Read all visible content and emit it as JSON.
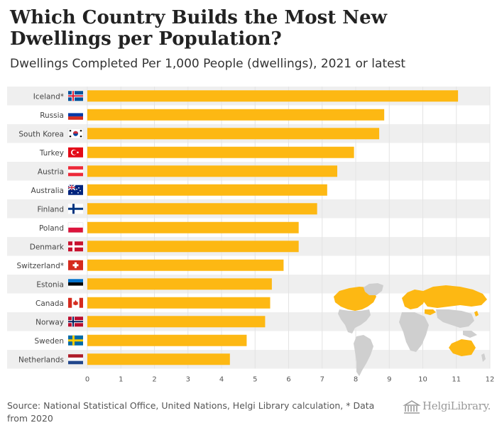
{
  "chart_data": {
    "type": "bar",
    "orientation": "horizontal",
    "title": "Which Country Builds the Most New Dwellings per Population?",
    "subtitle": "Dwellings Completed Per 1,000 People (dwellings), 2021 or latest",
    "categories": [
      "Iceland*",
      "Russia",
      "South Korea",
      "Turkey",
      "Austria",
      "Australia",
      "Finland",
      "Poland",
      "Denmark",
      "Switzerland*",
      "Estonia",
      "Canada",
      "Norway",
      "Sweden",
      "Netherlands"
    ],
    "flags": [
      "iceland",
      "russia",
      "south-korea",
      "turkey",
      "austria",
      "australia",
      "finland",
      "poland",
      "denmark",
      "switzerland",
      "estonia",
      "canada",
      "norway",
      "sweden",
      "netherlands"
    ],
    "values": [
      11.05,
      8.85,
      8.7,
      7.95,
      7.45,
      7.15,
      6.85,
      6.3,
      6.3,
      5.85,
      5.5,
      5.45,
      5.3,
      4.75,
      4.25
    ],
    "xlim": [
      0,
      12
    ],
    "xticks": [
      "0",
      "1",
      "2",
      "3",
      "4",
      "5",
      "6",
      "7",
      "8",
      "9",
      "10",
      "11",
      "12"
    ],
    "bar_color": "#fdb813",
    "row_band_color": "#efefef",
    "grid": true,
    "legend": "none"
  },
  "footer": {
    "source": "Source: National Statistical Office, United Nations, Helgi Library calculation, * Data from 2020",
    "logo": "HelgiLibrary."
  }
}
